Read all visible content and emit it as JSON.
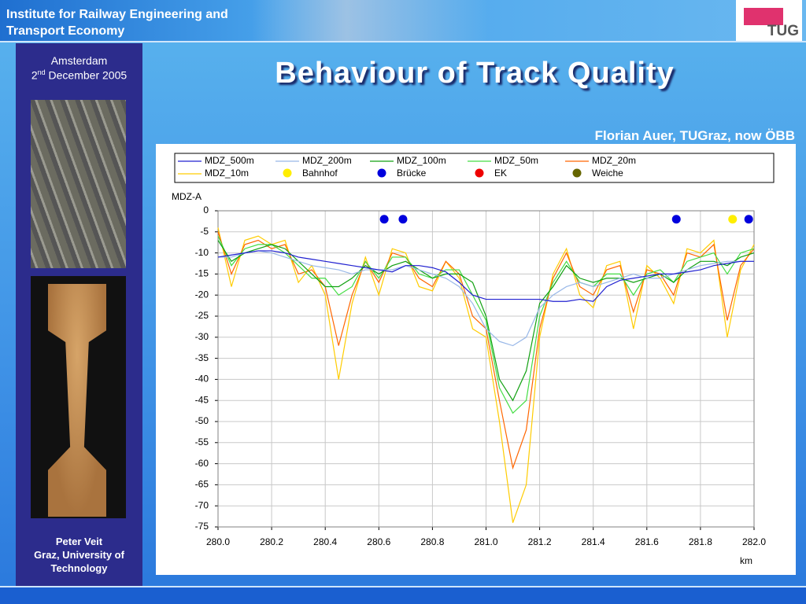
{
  "header": {
    "institute": "Institute for Railway Engineering and Transport Economy",
    "logo": "TUG"
  },
  "sidebar": {
    "city": "Amsterdam",
    "day": "2",
    "day_suffix": "nd",
    "month_year": "December 2005",
    "presenter": "Peter Veit",
    "affiliation": "Graz, University of Technology"
  },
  "slide": {
    "title": "Behaviour of Track Quality",
    "credit": "Florian Auer, TUGraz, now ÖBB"
  },
  "chart_data": {
    "type": "line",
    "x_label": "km",
    "y_label": "MDZ-A",
    "xlim": [
      280,
      282
    ],
    "ylim": [
      -75,
      0
    ],
    "xticks": [
      {
        "value": 280,
        "label": "280.0"
      },
      280.2,
      280.4,
      280.6,
      280.8,
      {
        "value": 281,
        "label": "281.0"
      },
      281.2,
      281.4,
      281.6,
      281.8,
      {
        "value": 282,
        "label": "282.0"
      }
    ],
    "yticks": [
      0,
      -5,
      -10,
      -15,
      -20,
      -25,
      -30,
      -35,
      -40,
      -45,
      -50,
      -55,
      -60,
      -65,
      -70,
      -75
    ],
    "grid": true,
    "x": [
      280.0,
      280.05,
      280.1,
      280.15,
      280.2,
      280.25,
      280.3,
      280.35,
      280.4,
      280.45,
      280.5,
      280.55,
      280.6,
      280.65,
      280.7,
      280.75,
      280.8,
      280.85,
      280.9,
      280.95,
      281.0,
      281.05,
      281.1,
      281.15,
      281.2,
      281.25,
      281.3,
      281.35,
      281.4,
      281.45,
      281.5,
      281.55,
      281.6,
      281.65,
      281.7,
      281.75,
      281.8,
      281.85,
      281.9,
      281.95,
      282.0
    ],
    "series": [
      {
        "name": "MDZ_500m",
        "color": "#2020d0",
        "values": [
          -11,
          -10.5,
          -10,
          -9.5,
          -9.5,
          -10,
          -11,
          -11.5,
          -12,
          -12.5,
          -13,
          -13.5,
          -14,
          -14.5,
          -13,
          -13,
          -13.5,
          -14.5,
          -17,
          -20,
          -21,
          -21,
          -21,
          -21,
          -21,
          -21.5,
          -21.5,
          -21,
          -21.5,
          -18,
          -16.5,
          -16,
          -15.5,
          -15,
          -15,
          -14.5,
          -14,
          -13,
          -12.5,
          -12,
          -12
        ]
      },
      {
        "name": "MDZ_200m",
        "color": "#99b8e8",
        "values": [
          -11,
          -11,
          -10,
          -9.5,
          -10,
          -11,
          -12,
          -13,
          -13.5,
          -14,
          -15,
          -14,
          -14,
          -14,
          -13,
          -14,
          -15,
          -16,
          -18,
          -22,
          -28,
          -31,
          -32,
          -30,
          -23,
          -20,
          -18,
          -17,
          -18,
          -17,
          -16,
          -15,
          -16,
          -16,
          -15,
          -14,
          -13,
          -12.5,
          -12,
          -12,
          -12
        ]
      },
      {
        "name": "MDZ_100m",
        "color": "#10a010",
        "values": [
          -7,
          -12,
          -10,
          -9,
          -8,
          -9,
          -12,
          -15,
          -18,
          -18,
          -16,
          -13,
          -15,
          -13,
          -12,
          -14,
          -16,
          -15,
          -15,
          -17,
          -25,
          -40,
          -45,
          -38,
          -22,
          -18,
          -13,
          -16,
          -17,
          -16,
          -16,
          -17,
          -16,
          -15,
          -17,
          -14,
          -12,
          -12,
          -13,
          -11,
          -10
        ]
      },
      {
        "name": "MDZ_50m",
        "color": "#44dd44",
        "values": [
          -6,
          -13,
          -9,
          -8,
          -8,
          -10,
          -13,
          -16,
          -16,
          -20,
          -18,
          -12,
          -16,
          -11,
          -11,
          -15,
          -16,
          -14,
          -14,
          -20,
          -26,
          -42,
          -48,
          -45,
          -25,
          -17,
          -12,
          -17,
          -18,
          -15,
          -15,
          -20,
          -15,
          -14,
          -17,
          -12,
          -11,
          -10,
          -15,
          -10,
          -9
        ]
      },
      {
        "name": "MDZ_20m",
        "color": "#ff6600",
        "values": [
          -5,
          -15,
          -8,
          -7,
          -9,
          -8,
          -15,
          -14,
          -18,
          -32,
          -20,
          -12,
          -17,
          -10,
          -11,
          -16,
          -18,
          -12,
          -15,
          -25,
          -28,
          -45,
          -61,
          -52,
          -28,
          -16,
          -10,
          -18,
          -20,
          -14,
          -13,
          -24,
          -14,
          -15,
          -20,
          -10,
          -11,
          -8,
          -26,
          -13,
          -9
        ]
      },
      {
        "name": "MDZ_10m",
        "color": "#ffcc00",
        "values": [
          -4,
          -18,
          -7,
          -6,
          -8,
          -7,
          -17,
          -13,
          -20,
          -40,
          -22,
          -11,
          -20,
          -9,
          -10,
          -18,
          -19,
          -12,
          -16,
          -28,
          -30,
          -50,
          -74,
          -65,
          -30,
          -15,
          -9,
          -20,
          -23,
          -13,
          -12,
          -28,
          -13,
          -16,
          -22,
          -9,
          -10,
          -7,
          -30,
          -14,
          -8
        ]
      },
      {
        "name": "Bahnhof",
        "color": "#ffee00",
        "x": [
          281.92
        ],
        "values": [
          -2
        ]
      },
      {
        "name": "Brücke",
        "color": "#0000dd",
        "x": [
          280.62,
          280.69,
          281.71,
          281.98
        ],
        "values": [
          -2,
          -2,
          -2,
          -2
        ]
      },
      {
        "name": "EK",
        "color": "#ee0000",
        "x": [],
        "values": []
      },
      {
        "name": "Weiche",
        "color": "#666600",
        "x": [],
        "values": []
      }
    ]
  }
}
